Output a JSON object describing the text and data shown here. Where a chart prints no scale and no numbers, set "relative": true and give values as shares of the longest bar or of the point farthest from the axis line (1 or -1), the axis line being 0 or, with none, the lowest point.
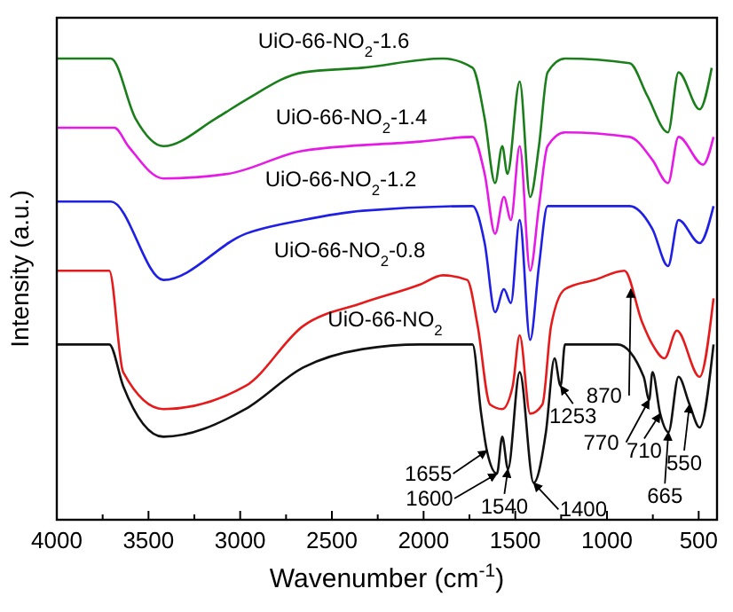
{
  "chart_data": {
    "type": "line",
    "xlabel": "Wavenumber (cm$^{-1}$)",
    "ylabel": "Intensity (a.u.)",
    "relative": true,
    "xlim": [
      4000,
      400
    ],
    "xticks": [
      4000,
      {
        "value": 3750,
        "label": null
      },
      3500,
      {
        "value": 3250,
        "label": null
      },
      3000,
      {
        "value": 2750,
        "label": null
      },
      2500,
      {
        "value": 2250,
        "label": null
      },
      2000,
      {
        "value": 1750,
        "label": null
      },
      1500,
      {
        "value": 1250,
        "label": null
      },
      1000,
      {
        "value": 750,
        "label": null
      },
      500
    ],
    "series": [
      {
        "name": "UiO-66-NO$_{2}$-1.6",
        "color": "#1a7f1a",
        "x": [
          4000,
          3750,
          3705,
          3571,
          3419,
          3133,
          2971,
          2657,
          2333,
          1895,
          1733,
          1667,
          1610,
          1571,
          1543,
          1476,
          1419,
          1371,
          1324,
          1229,
          876,
          781,
          667,
          610,
          495,
          429
        ],
        "values": [
          1.0,
          1.0,
          1.0,
          0.87,
          0.81,
          0.87,
          0.91,
          0.97,
          0.98,
          1.0,
          0.98,
          0.87,
          0.73,
          0.81,
          0.75,
          0.95,
          0.7,
          0.81,
          0.97,
          1.0,
          0.99,
          0.92,
          0.84,
          0.97,
          0.89,
          0.98
        ]
      },
      {
        "name": "UiO-66-NO$_{2}$-1.4",
        "color": "#e619e6",
        "x": [
          4000,
          3686,
          3610,
          3419,
          3067,
          2657,
          2019,
          1733,
          1667,
          1610,
          1562,
          1524,
          1476,
          1419,
          1371,
          1324,
          1229,
          876,
          752,
          667,
          610,
          476,
          419
        ],
        "values": [
          0.85,
          0.85,
          0.81,
          0.74,
          0.75,
          0.8,
          0.82,
          0.83,
          0.75,
          0.62,
          0.7,
          0.65,
          0.81,
          0.54,
          0.68,
          0.81,
          0.84,
          0.83,
          0.78,
          0.73,
          0.83,
          0.77,
          0.83
        ]
      },
      {
        "name": "UiO-66-NO$_{2}$-1.2",
        "color": "#1f1fe6",
        "x": [
          4000,
          3705,
          3419,
          2971,
          2657,
          2333,
          1733,
          1667,
          1610,
          1562,
          1524,
          1476,
          1419,
          1371,
          1324,
          1229,
          876,
          752,
          667,
          610,
          495,
          419
        ],
        "values": [
          0.69,
          0.69,
          0.52,
          0.62,
          0.65,
          0.67,
          0.68,
          0.6,
          0.45,
          0.5,
          0.47,
          0.65,
          0.39,
          0.55,
          0.68,
          0.68,
          0.68,
          0.63,
          0.55,
          0.65,
          0.6,
          0.68
        ]
      },
      {
        "name": "UiO-66-NO$_{2}$-0.8",
        "color": "#e61a1a",
        "x": [
          4000,
          3714,
          3638,
          3419,
          2971,
          2657,
          2333,
          2019,
          1895,
          1762,
          1705,
          1638,
          1571,
          1514,
          1476,
          1419,
          1352,
          1305,
          1229,
          1067,
          905,
          810,
          752,
          686,
          619,
          495,
          419
        ],
        "values": [
          0.54,
          0.54,
          0.32,
          0.24,
          0.29,
          0.42,
          0.47,
          0.51,
          0.53,
          0.52,
          0.42,
          0.25,
          0.24,
          0.29,
          0.4,
          0.23,
          0.25,
          0.42,
          0.5,
          0.52,
          0.54,
          0.43,
          0.38,
          0.35,
          0.41,
          0.31,
          0.48
        ]
      },
      {
        "name": "UiO-66-NO$_{2}$",
        "color": "#111111",
        "x": [
          4000,
          3714,
          3638,
          3419,
          2971,
          2657,
          2333,
          2019,
          1733,
          1686,
          1655,
          1600,
          1571,
          1540,
          1476,
          1400,
          1333,
          1286,
          1253,
          1229,
          943,
          800,
          770,
          752,
          710,
          665,
          610,
          550,
          495,
          419
        ],
        "values": [
          0.38,
          0.38,
          0.29,
          0.18,
          0.24,
          0.33,
          0.37,
          0.38,
          0.38,
          0.23,
          0.15,
          0.1,
          0.18,
          0.11,
          0.32,
          0.08,
          0.19,
          0.35,
          0.29,
          0.38,
          0.38,
          0.31,
          0.26,
          0.32,
          0.23,
          0.19,
          0.31,
          0.25,
          0.2,
          0.38
        ]
      }
    ],
    "annotations": [
      {
        "text": "1655",
        "x": 1655,
        "y": 0.15
      },
      {
        "text": "1600",
        "x": 1600,
        "y": 0.1
      },
      {
        "text": "1540",
        "x": 1540,
        "y": 0.11
      },
      {
        "text": "1400",
        "x": 1400,
        "y": 0.08
      },
      {
        "text": "1253",
        "x": 1253,
        "y": 0.29
      },
      {
        "text": "870",
        "x": 870,
        "y": 0.5
      },
      {
        "text": "770",
        "x": 770,
        "y": 0.26
      },
      {
        "text": "710",
        "x": 710,
        "y": 0.23
      },
      {
        "text": "665",
        "x": 665,
        "y": 0.19
      },
      {
        "text": "550",
        "x": 550,
        "y": 0.25
      }
    ]
  }
}
